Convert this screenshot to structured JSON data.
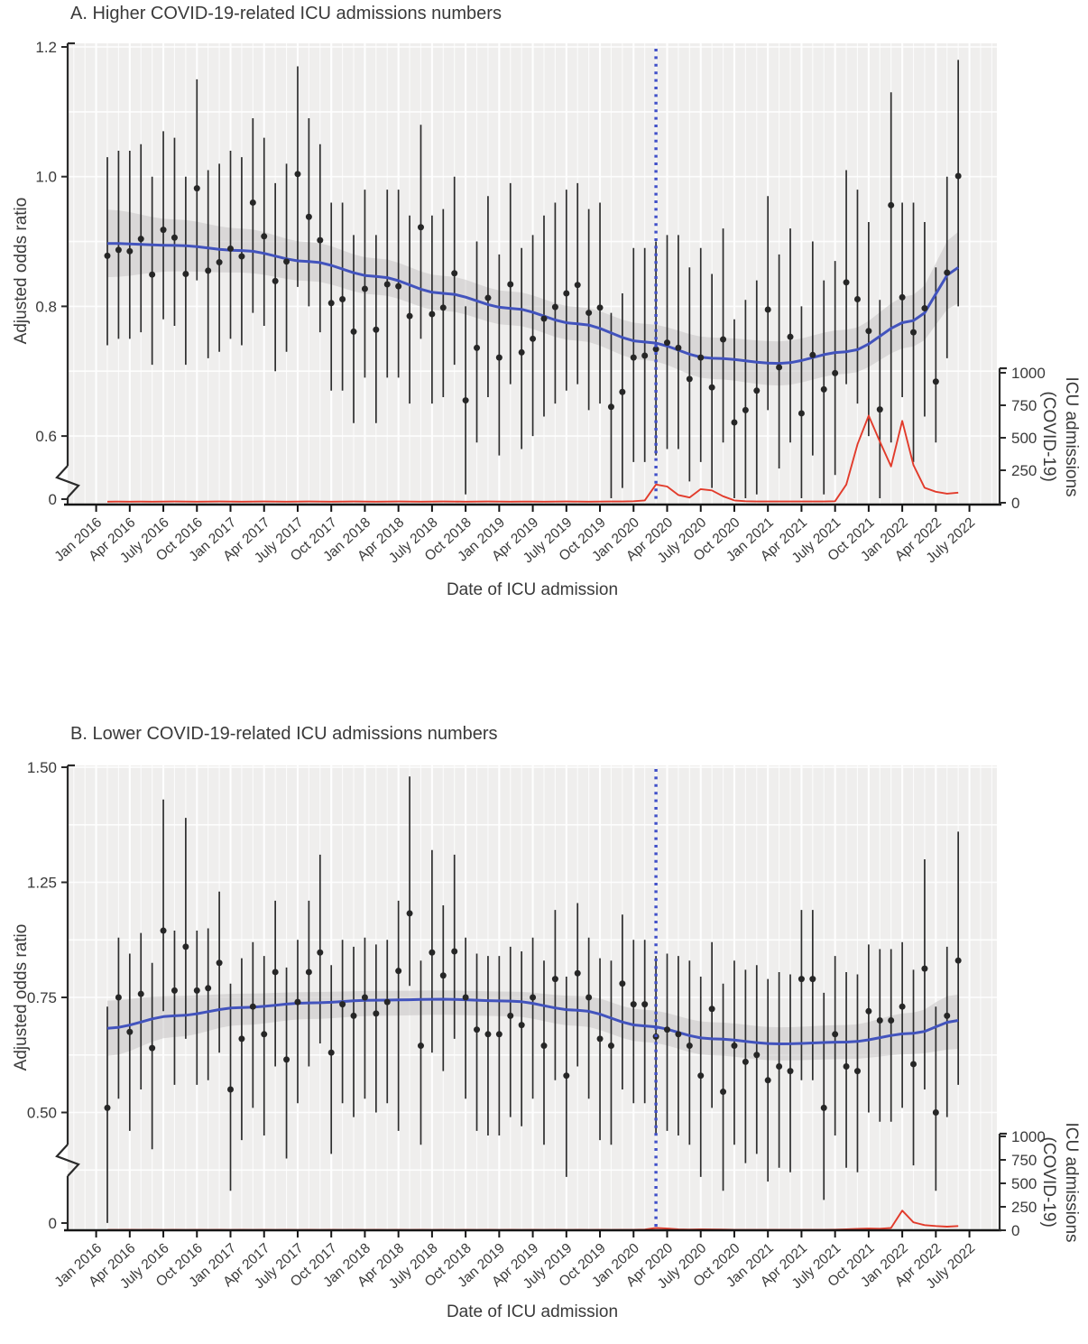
{
  "figure": {
    "description": "Two-panel figure of adjusted odds ratio of ICU outcomes over date of ICU admission, with COVID-19 ICU admissions overlaid",
    "pandemic_line_label": "pandemic onset (dotted line)"
  },
  "chart_data": [
    {
      "type": "scatter",
      "panel": "A",
      "title": "A. Higher COVID-19-related ICU admissions numbers",
      "xlabel": "Date of ICU admission",
      "ylabel": "Adjusted odds ratio",
      "y2label_lines": [
        "ICU admissions",
        "(COVID-19)"
      ],
      "legend": "none",
      "grid": true,
      "axis_break": true,
      "ylim": [
        0.6,
        1.2
      ],
      "y2lim": [
        0,
        1000
      ],
      "y_ticks": [
        {
          "label": "1.2",
          "value": 1.2
        },
        {
          "label": "1.0",
          "value": 1.0
        },
        {
          "label": "0.8",
          "value": 0.8
        },
        {
          "label": "0.6",
          "value": 0.6
        },
        {
          "label": "0",
          "value": 0,
          "below_break": true
        }
      ],
      "y2_ticks": [
        "1000",
        "750",
        "500",
        "250",
        "0"
      ],
      "x_tick_labels": [
        "Jan 2016",
        "Apr 2016",
        "July 2016",
        "Oct 2016",
        "Jan 2017",
        "Apr 2017",
        "July 2017",
        "Oct 2017",
        "Jan 2018",
        "Apr 2018",
        "July 2018",
        "Oct 2018",
        "Jan 2019",
        "Apr 2019",
        "July 2019",
        "Oct 2019",
        "Jan 2020",
        "Apr 2020",
        "July 2020",
        "Oct 2020",
        "Jan 2021",
        "Apr 2021",
        "July 2021",
        "Oct 2021",
        "Jan 2022",
        "Apr 2022",
        "July 2022"
      ],
      "pandemic_line_month": "2020-03",
      "months": [
        "2016-02",
        "2016-03",
        "2016-04",
        "2016-05",
        "2016-06",
        "2016-07",
        "2016-08",
        "2016-09",
        "2016-10",
        "2016-11",
        "2016-12",
        "2017-01",
        "2017-02",
        "2017-03",
        "2017-04",
        "2017-05",
        "2017-06",
        "2017-07",
        "2017-08",
        "2017-09",
        "2017-10",
        "2017-11",
        "2017-12",
        "2018-01",
        "2018-02",
        "2018-03",
        "2018-04",
        "2018-05",
        "2018-06",
        "2018-07",
        "2018-08",
        "2018-09",
        "2018-10",
        "2018-11",
        "2018-12",
        "2019-01",
        "2019-02",
        "2019-03",
        "2019-04",
        "2019-05",
        "2019-06",
        "2019-07",
        "2019-08",
        "2019-09",
        "2019-10",
        "2019-11",
        "2019-12",
        "2020-01",
        "2020-02",
        "2020-03",
        "2020-04",
        "2020-05",
        "2020-06",
        "2020-07",
        "2020-08",
        "2020-09",
        "2020-10",
        "2020-11",
        "2020-12",
        "2021-01",
        "2021-02",
        "2021-03",
        "2021-04",
        "2021-05",
        "2021-06",
        "2021-07",
        "2021-08",
        "2021-09",
        "2021-10",
        "2021-11",
        "2021-12",
        "2022-01",
        "2022-02",
        "2022-03",
        "2022-04",
        "2022-05",
        "2022-06"
      ],
      "odds_ratio": [
        0.878,
        0.887,
        0.885,
        0.904,
        0.849,
        0.918,
        0.906,
        0.85,
        0.982,
        0.855,
        0.868,
        0.889,
        0.877,
        0.96,
        0.908,
        0.839,
        0.869,
        1.004,
        0.938,
        0.902,
        0.805,
        0.811,
        0.761,
        0.827,
        0.764,
        0.834,
        0.831,
        0.785,
        0.922,
        0.788,
        0.798,
        0.851,
        0.655,
        0.736,
        0.813,
        0.721,
        0.834,
        0.729,
        0.75,
        0.781,
        0.799,
        0.82,
        0.833,
        0.79,
        0.798,
        0.645,
        0.668,
        0.721,
        0.724,
        0.734,
        0.744,
        0.736,
        0.688,
        0.721,
        0.675,
        0.749,
        0.621,
        0.64,
        0.67,
        0.795,
        0.706,
        0.753,
        0.635,
        0.725,
        0.672,
        0.697,
        0.837,
        0.811,
        0.762,
        0.641,
        0.956,
        0.814,
        0.76,
        0.797,
        0.684,
        0.852,
        1.001
      ],
      "ci_high": [
        1.03,
        1.04,
        1.04,
        1.05,
        1.0,
        1.07,
        1.06,
        1.0,
        1.15,
        1.01,
        1.02,
        1.04,
        1.03,
        1.09,
        1.06,
        0.99,
        1.02,
        1.17,
        1.09,
        1.05,
        0.96,
        0.96,
        0.91,
        0.98,
        0.91,
        0.98,
        0.98,
        0.94,
        1.08,
        0.94,
        0.95,
        1.0,
        0.8,
        0.9,
        0.97,
        0.88,
        0.99,
        0.89,
        0.91,
        0.94,
        0.96,
        0.98,
        0.99,
        0.95,
        0.96,
        0.79,
        0.82,
        0.89,
        0.89,
        0.9,
        0.91,
        0.91,
        0.86,
        0.89,
        0.85,
        0.92,
        0.78,
        0.81,
        0.84,
        0.97,
        0.88,
        0.92,
        0.8,
        0.9,
        0.84,
        0.87,
        1.01,
        0.98,
        0.93,
        0.81,
        1.13,
        0.96,
        0.96,
        0.93,
        0.86,
        1.0,
        1.18
      ],
      "ci_low": [
        0.74,
        0.75,
        0.75,
        0.76,
        0.71,
        0.78,
        0.77,
        0.71,
        0.84,
        0.72,
        0.73,
        0.75,
        0.74,
        0.79,
        0.77,
        0.7,
        0.73,
        0.83,
        0.8,
        0.76,
        0.67,
        0.67,
        0.62,
        0.69,
        0.62,
        0.69,
        0.69,
        0.65,
        0.75,
        0.65,
        0.66,
        0.71,
        0.51,
        0.59,
        0.66,
        0.57,
        0.68,
        0.58,
        0.6,
        0.63,
        0.65,
        0.67,
        0.68,
        0.64,
        0.65,
        0.5,
        0.52,
        0.56,
        0.56,
        0.57,
        0.58,
        0.58,
        0.53,
        0.56,
        0.52,
        0.59,
        0.47,
        0.48,
        0.51,
        0.64,
        0.55,
        0.59,
        0.48,
        0.57,
        0.51,
        0.54,
        0.68,
        0.65,
        0.6,
        0.48,
        0.59,
        0.66,
        0.56,
        0.63,
        0.59,
        0.72,
        0.8
      ],
      "trend": {
        "month_index": [
          0,
          6,
          12,
          18,
          24,
          30,
          36,
          42,
          48,
          54,
          60,
          66,
          72,
          76
        ],
        "value": [
          0.897,
          0.894,
          0.886,
          0.869,
          0.846,
          0.82,
          0.797,
          0.773,
          0.745,
          0.72,
          0.712,
          0.73,
          0.778,
          0.86
        ],
        "band_halfwidth": [
          0.052,
          0.04,
          0.034,
          0.03,
          0.028,
          0.027,
          0.026,
          0.026,
          0.028,
          0.032,
          0.034,
          0.034,
          0.04,
          0.055
        ]
      },
      "icu_admissions": [
        8,
        9,
        8,
        9,
        8,
        9,
        10,
        9,
        8,
        9,
        10,
        9,
        8,
        9,
        10,
        9,
        8,
        9,
        10,
        9,
        8,
        9,
        10,
        9,
        8,
        9,
        10,
        9,
        8,
        9,
        10,
        9,
        8,
        9,
        10,
        9,
        8,
        9,
        9,
        8,
        9,
        10,
        9,
        8,
        9,
        10,
        10,
        12,
        18,
        140,
        125,
        60,
        40,
        105,
        95,
        50,
        18,
        12,
        10,
        10,
        10,
        10,
        10,
        10,
        10,
        12,
        140,
        450,
        670,
        470,
        280,
        630,
        290,
        115,
        85,
        70,
        78
      ],
      "colors": {
        "trend": "#4253bd",
        "ci_band": "#c7c4c5",
        "points": "#262626",
        "whiskers": "#2d2d2d",
        "icu_line": "#e23b2b",
        "pandemic_line": "#3f4fc8",
        "plot_bg": "#efeeed",
        "text": "#3a3a3a"
      }
    },
    {
      "type": "scatter",
      "panel": "B",
      "title": "B. Lower COVID-19-related ICU admissions numbers",
      "xlabel": "Date of ICU admission",
      "ylabel": "Adjusted odds ratio",
      "y2label_lines": [
        "ICU admissions",
        "(COVID-19)"
      ],
      "legend": "none",
      "grid": true,
      "axis_break": true,
      "ylim": [
        0.5,
        1.5
      ],
      "y2lim": [
        0,
        1000
      ],
      "y_ticks": [
        {
          "label": "1.50",
          "value": 1.5
        },
        {
          "label": "1.25",
          "value": 1.25
        },
        {
          "label": "0.75",
          "value": 0.75
        },
        {
          "label": "0.50",
          "value": 0.5
        },
        {
          "label": "0",
          "value": 0,
          "below_break": true
        }
      ],
      "y2_ticks": [
        "1000",
        "750",
        "500",
        "250",
        "0"
      ],
      "x_tick_labels": [
        "Jan 2016",
        "Apr 2016",
        "July 2016",
        "Oct 2016",
        "Jan 2017",
        "Apr 2017",
        "July 2017",
        "Oct 2017",
        "Jan 2018",
        "Apr 2018",
        "July 2018",
        "Oct 2018",
        "Jan 2019",
        "Apr 2019",
        "July 2019",
        "Oct 2019",
        "Jan 2020",
        "Apr 2020",
        "July 2020",
        "Oct 2020",
        "Jan 2021",
        "Apr 2021",
        "July 2021",
        "Oct 2021",
        "Jan 2022",
        "Apr 2022",
        "July 2022"
      ],
      "pandemic_line_month": "2020-03",
      "months": [
        "2016-02",
        "2016-03",
        "2016-04",
        "2016-05",
        "2016-06",
        "2016-07",
        "2016-08",
        "2016-09",
        "2016-10",
        "2016-11",
        "2016-12",
        "2017-01",
        "2017-02",
        "2017-03",
        "2017-04",
        "2017-05",
        "2017-06",
        "2017-07",
        "2017-08",
        "2017-09",
        "2017-10",
        "2017-11",
        "2017-12",
        "2018-01",
        "2018-02",
        "2018-03",
        "2018-04",
        "2018-05",
        "2018-06",
        "2018-07",
        "2018-08",
        "2018-09",
        "2018-10",
        "2018-11",
        "2018-12",
        "2019-01",
        "2019-02",
        "2019-03",
        "2019-04",
        "2019-05",
        "2019-06",
        "2019-07",
        "2019-08",
        "2019-09",
        "2019-10",
        "2019-11",
        "2019-12",
        "2020-01",
        "2020-02",
        "2020-03",
        "2020-04",
        "2020-05",
        "2020-06",
        "2020-07",
        "2020-08",
        "2020-09",
        "2020-10",
        "2020-11",
        "2020-12",
        "2021-01",
        "2021-02",
        "2021-03",
        "2021-04",
        "2021-05",
        "2021-06",
        "2021-07",
        "2021-08",
        "2021-09",
        "2021-10",
        "2021-11",
        "2021-12",
        "2022-01",
        "2022-02",
        "2022-03",
        "2022-04",
        "2022-05",
        "2022-06"
      ],
      "odds_ratio": [
        0.51,
        0.75,
        0.675,
        0.765,
        0.64,
        1.04,
        0.78,
        0.97,
        0.78,
        0.79,
        0.9,
        0.55,
        0.66,
        0.73,
        0.67,
        0.86,
        0.615,
        0.74,
        0.86,
        0.945,
        0.63,
        0.735,
        0.71,
        0.75,
        0.715,
        0.74,
        0.865,
        1.115,
        0.645,
        0.945,
        0.845,
        0.95,
        0.75,
        0.68,
        0.67,
        0.67,
        0.71,
        0.69,
        0.75,
        0.645,
        0.83,
        0.58,
        0.855,
        0.75,
        0.66,
        0.645,
        0.81,
        0.735,
        0.735,
        0.665,
        0.68,
        0.67,
        0.645,
        0.58,
        0.725,
        0.545,
        0.645,
        0.61,
        0.625,
        0.57,
        0.6,
        0.59,
        0.83,
        0.83,
        0.51,
        0.67,
        0.6,
        0.59,
        0.72,
        0.7,
        0.7,
        0.73,
        0.605,
        0.875,
        0.5,
        0.71,
        0.91
      ],
      "ci_high": [
        0.73,
        1.01,
        0.94,
        1.03,
        0.9,
        1.43,
        1.04,
        1.39,
        1.04,
        1.05,
        1.21,
        0.81,
        0.92,
        0.99,
        0.93,
        1.17,
        0.88,
        1.0,
        1.17,
        1.31,
        0.89,
        1.0,
        0.97,
        1.01,
        0.98,
        1.0,
        1.17,
        1.48,
        0.91,
        1.32,
        1.15,
        1.31,
        1.01,
        0.94,
        0.93,
        0.93,
        0.97,
        0.95,
        1.01,
        0.91,
        1.13,
        0.84,
        1.16,
        1.01,
        0.92,
        0.91,
        1.11,
        1.0,
        1.0,
        0.93,
        0.94,
        0.93,
        0.91,
        0.84,
        0.99,
        0.81,
        0.91,
        0.87,
        0.89,
        0.83,
        0.86,
        0.85,
        1.13,
        1.13,
        0.77,
        0.93,
        0.86,
        0.85,
        0.98,
        0.96,
        0.96,
        0.99,
        0.87,
        1.3,
        0.73,
        0.97,
        1.36
      ],
      "ci_low": [
        0.26,
        0.53,
        0.46,
        0.55,
        0.42,
        0.72,
        0.56,
        0.66,
        0.56,
        0.57,
        0.63,
        0.33,
        0.44,
        0.51,
        0.45,
        0.6,
        0.4,
        0.52,
        0.6,
        0.65,
        0.41,
        0.52,
        0.49,
        0.53,
        0.5,
        0.52,
        0.46,
        0.8,
        0.43,
        0.63,
        0.59,
        0.66,
        0.53,
        0.46,
        0.45,
        0.45,
        0.49,
        0.47,
        0.53,
        0.43,
        0.57,
        0.36,
        0.6,
        0.53,
        0.44,
        0.43,
        0.55,
        0.52,
        0.52,
        0.45,
        0.46,
        0.45,
        0.43,
        0.36,
        0.51,
        0.33,
        0.43,
        0.39,
        0.41,
        0.35,
        0.38,
        0.37,
        0.57,
        0.57,
        0.31,
        0.45,
        0.38,
        0.37,
        0.5,
        0.48,
        0.48,
        0.51,
        0.385,
        0.55,
        0.33,
        0.49,
        0.56
      ],
      "trend": {
        "month_index": [
          0,
          6,
          12,
          18,
          24,
          30,
          36,
          42,
          48,
          54,
          60,
          66,
          72,
          76
        ],
        "value": [
          0.683,
          0.71,
          0.728,
          0.738,
          0.744,
          0.746,
          0.742,
          0.722,
          0.688,
          0.66,
          0.649,
          0.653,
          0.672,
          0.7
        ],
        "band_halfwidth": [
          0.06,
          0.046,
          0.038,
          0.035,
          0.034,
          0.034,
          0.033,
          0.034,
          0.035,
          0.036,
          0.036,
          0.037,
          0.045,
          0.062
        ]
      },
      "icu_admissions": [
        4,
        4,
        5,
        4,
        5,
        4,
        5,
        4,
        5,
        4,
        5,
        4,
        5,
        4,
        5,
        4,
        5,
        4,
        5,
        4,
        5,
        4,
        5,
        4,
        5,
        4,
        5,
        4,
        5,
        4,
        5,
        4,
        5,
        4,
        5,
        4,
        5,
        4,
        5,
        4,
        5,
        4,
        5,
        4,
        5,
        4,
        5,
        6,
        8,
        25,
        18,
        10,
        8,
        10,
        9,
        8,
        6,
        6,
        6,
        6,
        6,
        6,
        6,
        6,
        6,
        7,
        10,
        14,
        18,
        16,
        25,
        210,
        85,
        55,
        45,
        38,
        45
      ],
      "colors": {
        "trend": "#4253bd",
        "ci_band": "#c7c4c5",
        "points": "#262626",
        "whiskers": "#2d2d2d",
        "icu_line": "#e23b2b",
        "pandemic_line": "#3f4fc8",
        "plot_bg": "#efeeed",
        "text": "#3a3a3a"
      }
    }
  ]
}
